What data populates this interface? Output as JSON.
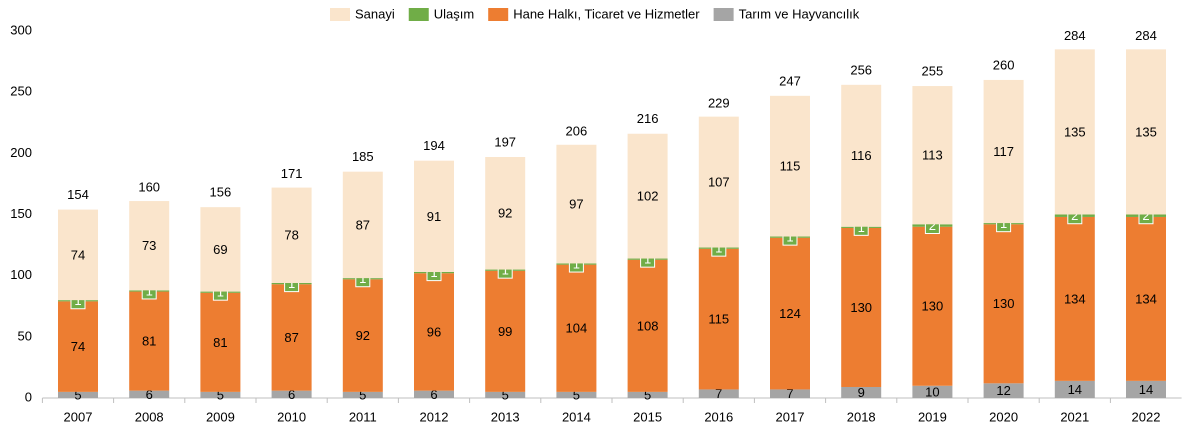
{
  "chart_data": {
    "type": "stacked_bar",
    "categories": [
      "2007",
      "2008",
      "2009",
      "2010",
      "2011",
      "2012",
      "2013",
      "2014",
      "2015",
      "2016",
      "2017",
      "2018",
      "2019",
      "2020",
      "2021",
      "2022"
    ],
    "series": [
      {
        "name": "Sanayi",
        "color": "#fae5cc",
        "values": [
          74,
          73,
          69,
          78,
          87,
          91,
          92,
          97,
          102,
          107,
          115,
          116,
          113,
          117,
          135,
          135
        ]
      },
      {
        "name": "Ulaşım",
        "color": "#70ad47",
        "values": [
          1,
          1,
          1,
          1,
          1,
          1,
          1,
          1,
          1,
          1,
          1,
          1,
          2,
          1,
          2,
          2
        ]
      },
      {
        "name": "Hane Halkı, Ticaret ve Hizmetler",
        "color": "#ed7d31",
        "values": [
          74,
          81,
          81,
          87,
          92,
          96,
          99,
          104,
          108,
          115,
          124,
          130,
          130,
          130,
          134,
          134
        ]
      },
      {
        "name": "Tarım ve Hayvancılık",
        "color": "#a5a5a5",
        "values": [
          5,
          6,
          5,
          6,
          5,
          6,
          5,
          5,
          5,
          7,
          7,
          9,
          10,
          12,
          14,
          14
        ]
      }
    ],
    "totals": [
      154,
      160,
      156,
      171,
      185,
      194,
      197,
      206,
      216,
      229,
      247,
      256,
      255,
      260,
      284,
      284
    ],
    "ylim": [
      0,
      300
    ],
    "yticks": [
      0,
      50,
      100,
      150,
      200,
      250,
      300
    ],
    "grid": false,
    "legend": "top"
  }
}
